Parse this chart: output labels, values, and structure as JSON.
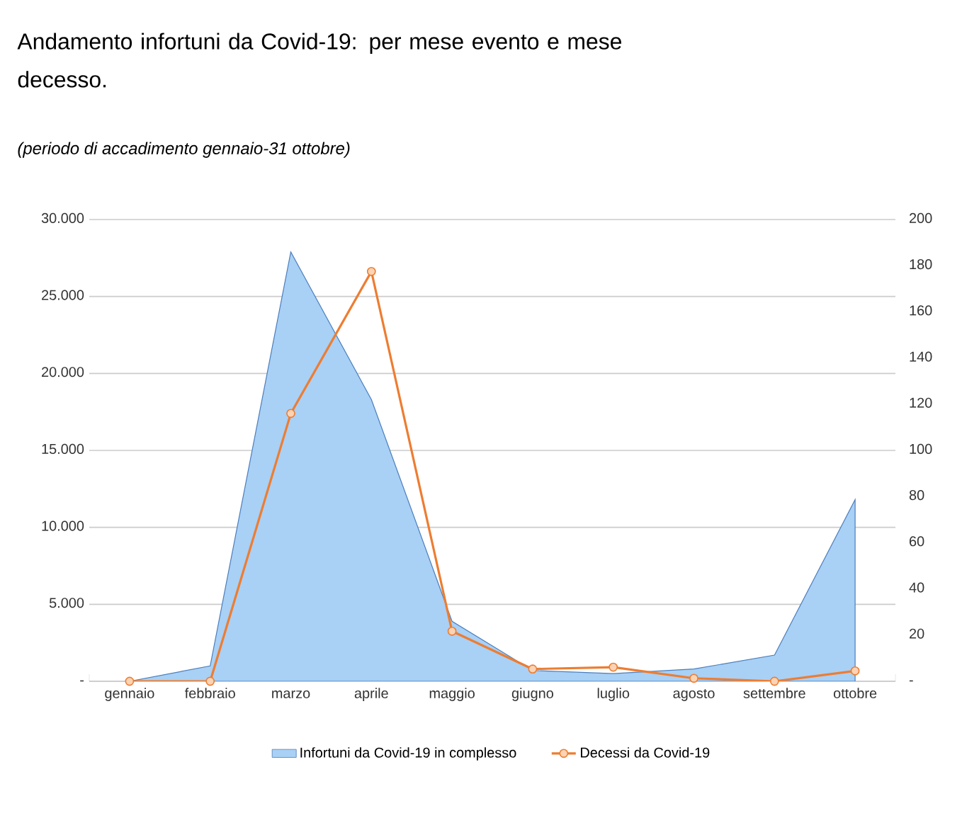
{
  "chart_data": {
    "type": "area",
    "title": "Andamento infortuni da Covid-19: per mese evento e mese decesso.",
    "subtitle": "(periodo di accadimento gennaio-31 ottobre)",
    "categories": [
      "gennaio",
      "febbraio",
      "marzo",
      "aprile",
      "maggio",
      "giugno",
      "luglio",
      "agosto",
      "settembre",
      "ottobre"
    ],
    "series": [
      {
        "name": "Infortuni da Covid-19 in complesso",
        "color": "#a9d0f5",
        "values": [
          0,
          1000,
          27900,
          18300,
          3900,
          700,
          500,
          800,
          1700,
          11800
        ]
      },
      {
        "name": "Decessi da Covid-19",
        "type": "line",
        "axis": "y2",
        "color": "#ed7d31",
        "marker": "circle",
        "values": [
          0,
          0,
          116,
          177.5,
          21.7,
          5.3,
          6.1,
          1.3,
          0,
          4.5
        ]
      }
    ],
    "ylim": [
      0,
      30000
    ],
    "yticks": [
      {
        "value": 0,
        "label": "-"
      },
      {
        "value": 5000,
        "label": "5.000"
      },
      {
        "value": 10000,
        "label": "10.000"
      },
      {
        "value": 15000,
        "label": "15.000"
      },
      {
        "value": 20000,
        "label": "20.000"
      },
      {
        "value": 25000,
        "label": "25.000"
      },
      {
        "value": 30000,
        "label": "30.000"
      }
    ],
    "y2lim": [
      0,
      200
    ],
    "y2ticks": [
      {
        "value": 0,
        "label": "-"
      },
      20,
      40,
      60,
      80,
      100,
      120,
      140,
      160,
      180,
      200
    ],
    "grid": "y",
    "legend": "bottom"
  }
}
